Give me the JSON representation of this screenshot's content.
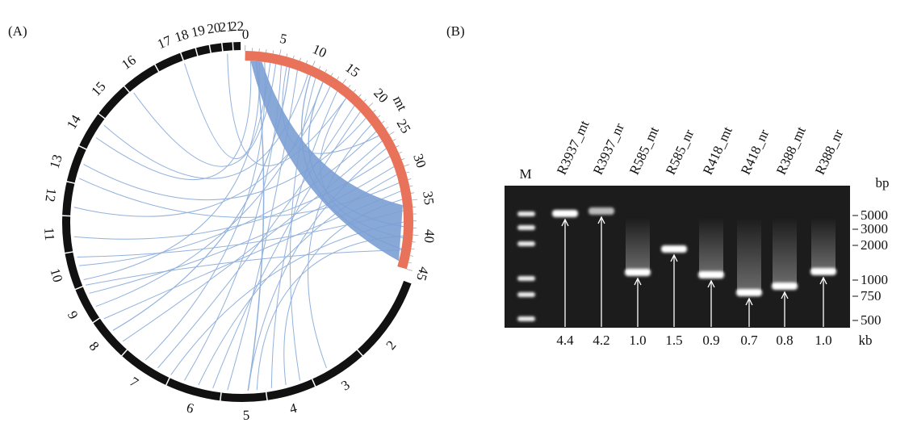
{
  "panel_a": {
    "label": "(A)",
    "chromosomes": [
      "2",
      "3",
      "4",
      "5",
      "6",
      "7",
      "8",
      "9",
      "10",
      "11",
      "12",
      "13",
      "14",
      "15",
      "16",
      "17",
      "18",
      "19",
      "20",
      "21",
      "22"
    ],
    "mt_label": "mt",
    "mt_ticks": [
      0,
      5,
      10,
      15,
      20,
      25,
      30,
      35,
      40,
      45
    ]
  },
  "panel_b": {
    "label": "(B)",
    "marker": "M",
    "lanes": [
      {
        "name": "R3937_mt",
        "size": "4.4"
      },
      {
        "name": "R3937_nr",
        "size": "4.2"
      },
      {
        "name": "R585_mt",
        "size": "1.0"
      },
      {
        "name": "R585_nr",
        "size": "1.5"
      },
      {
        "name": "R418_mt",
        "size": "0.9"
      },
      {
        "name": "R418_nr",
        "size": "0.7"
      },
      {
        "name": "R388_mt",
        "size": "0.8"
      },
      {
        "name": "R388_nr",
        "size": "1.0"
      }
    ],
    "ladder": [
      5000,
      3000,
      2000,
      1000,
      750,
      500
    ],
    "ladder_unit": "bp",
    "size_unit": "kb"
  }
}
